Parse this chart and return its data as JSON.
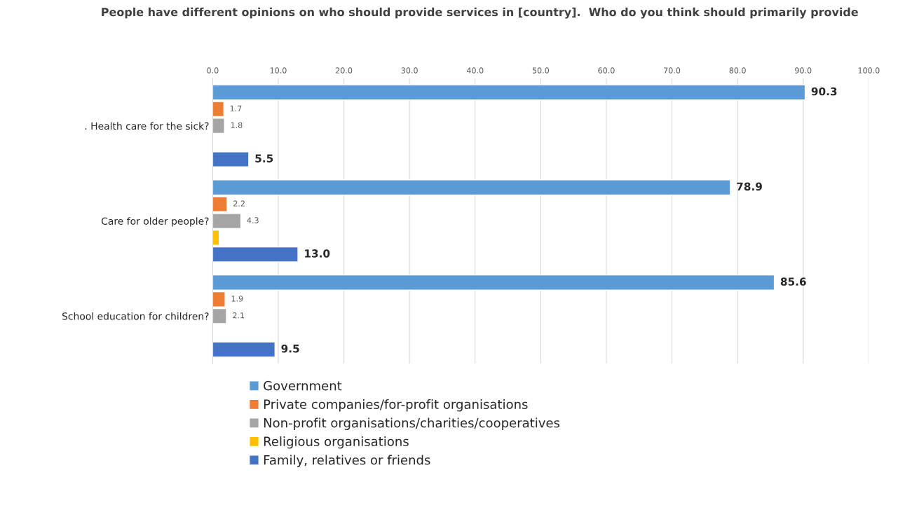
{
  "chart_data": {
    "type": "bar",
    "orientation": "horizontal",
    "title": "People have different opinions on who should provide services in [country].  Who do you think should primarily provide",
    "categories": [
      ". Health care for the sick?",
      "Care for older people?",
      "School education for children?"
    ],
    "series": [
      {
        "name": "Government",
        "color": "#5b9bd5",
        "values": [
          90.3,
          78.9,
          85.6
        ],
        "value_labels": [
          "90.3",
          "78.9",
          "85.6"
        ]
      },
      {
        "name": "Private companies/for-profit organisations",
        "color": "#ed7d31",
        "values": [
          1.7,
          2.2,
          1.9
        ],
        "value_labels": [
          "1.7",
          "2.2",
          "1.9"
        ]
      },
      {
        "name": "Non-profit organisations/charities/cooperatives",
        "color": "#a5a5a5",
        "values": [
          1.8,
          4.3,
          2.1
        ],
        "value_labels": [
          "1.8",
          "4.3",
          "2.1"
        ]
      },
      {
        "name": "Religious organisations",
        "color": "#ffc000",
        "values": [
          null,
          1.0,
          null
        ],
        "value_labels": [
          null,
          null,
          null
        ]
      },
      {
        "name": "Family, relatives or friends",
        "color": "#4472c4",
        "values": [
          5.5,
          13.0,
          9.5
        ],
        "value_labels": [
          "5.5",
          "13.0",
          "9.5"
        ]
      }
    ],
    "xlim": [
      0,
      100
    ],
    "xticks": [
      {
        "value": 0,
        "label": "0.0"
      },
      {
        "value": 10,
        "label": "10.0"
      },
      {
        "value": 20,
        "label": "20.0"
      },
      {
        "value": 30,
        "label": "30.0"
      },
      {
        "value": 40,
        "label": "40.0"
      },
      {
        "value": 50,
        "label": "50.0"
      },
      {
        "value": 60,
        "label": "60.0"
      },
      {
        "value": 70,
        "label": "70.0"
      },
      {
        "value": 80,
        "label": "80.0"
      },
      {
        "value": 90,
        "label": "90.0"
      },
      {
        "value": 100,
        "label": "100.0"
      }
    ],
    "grid": "x",
    "legend": "bottom"
  }
}
